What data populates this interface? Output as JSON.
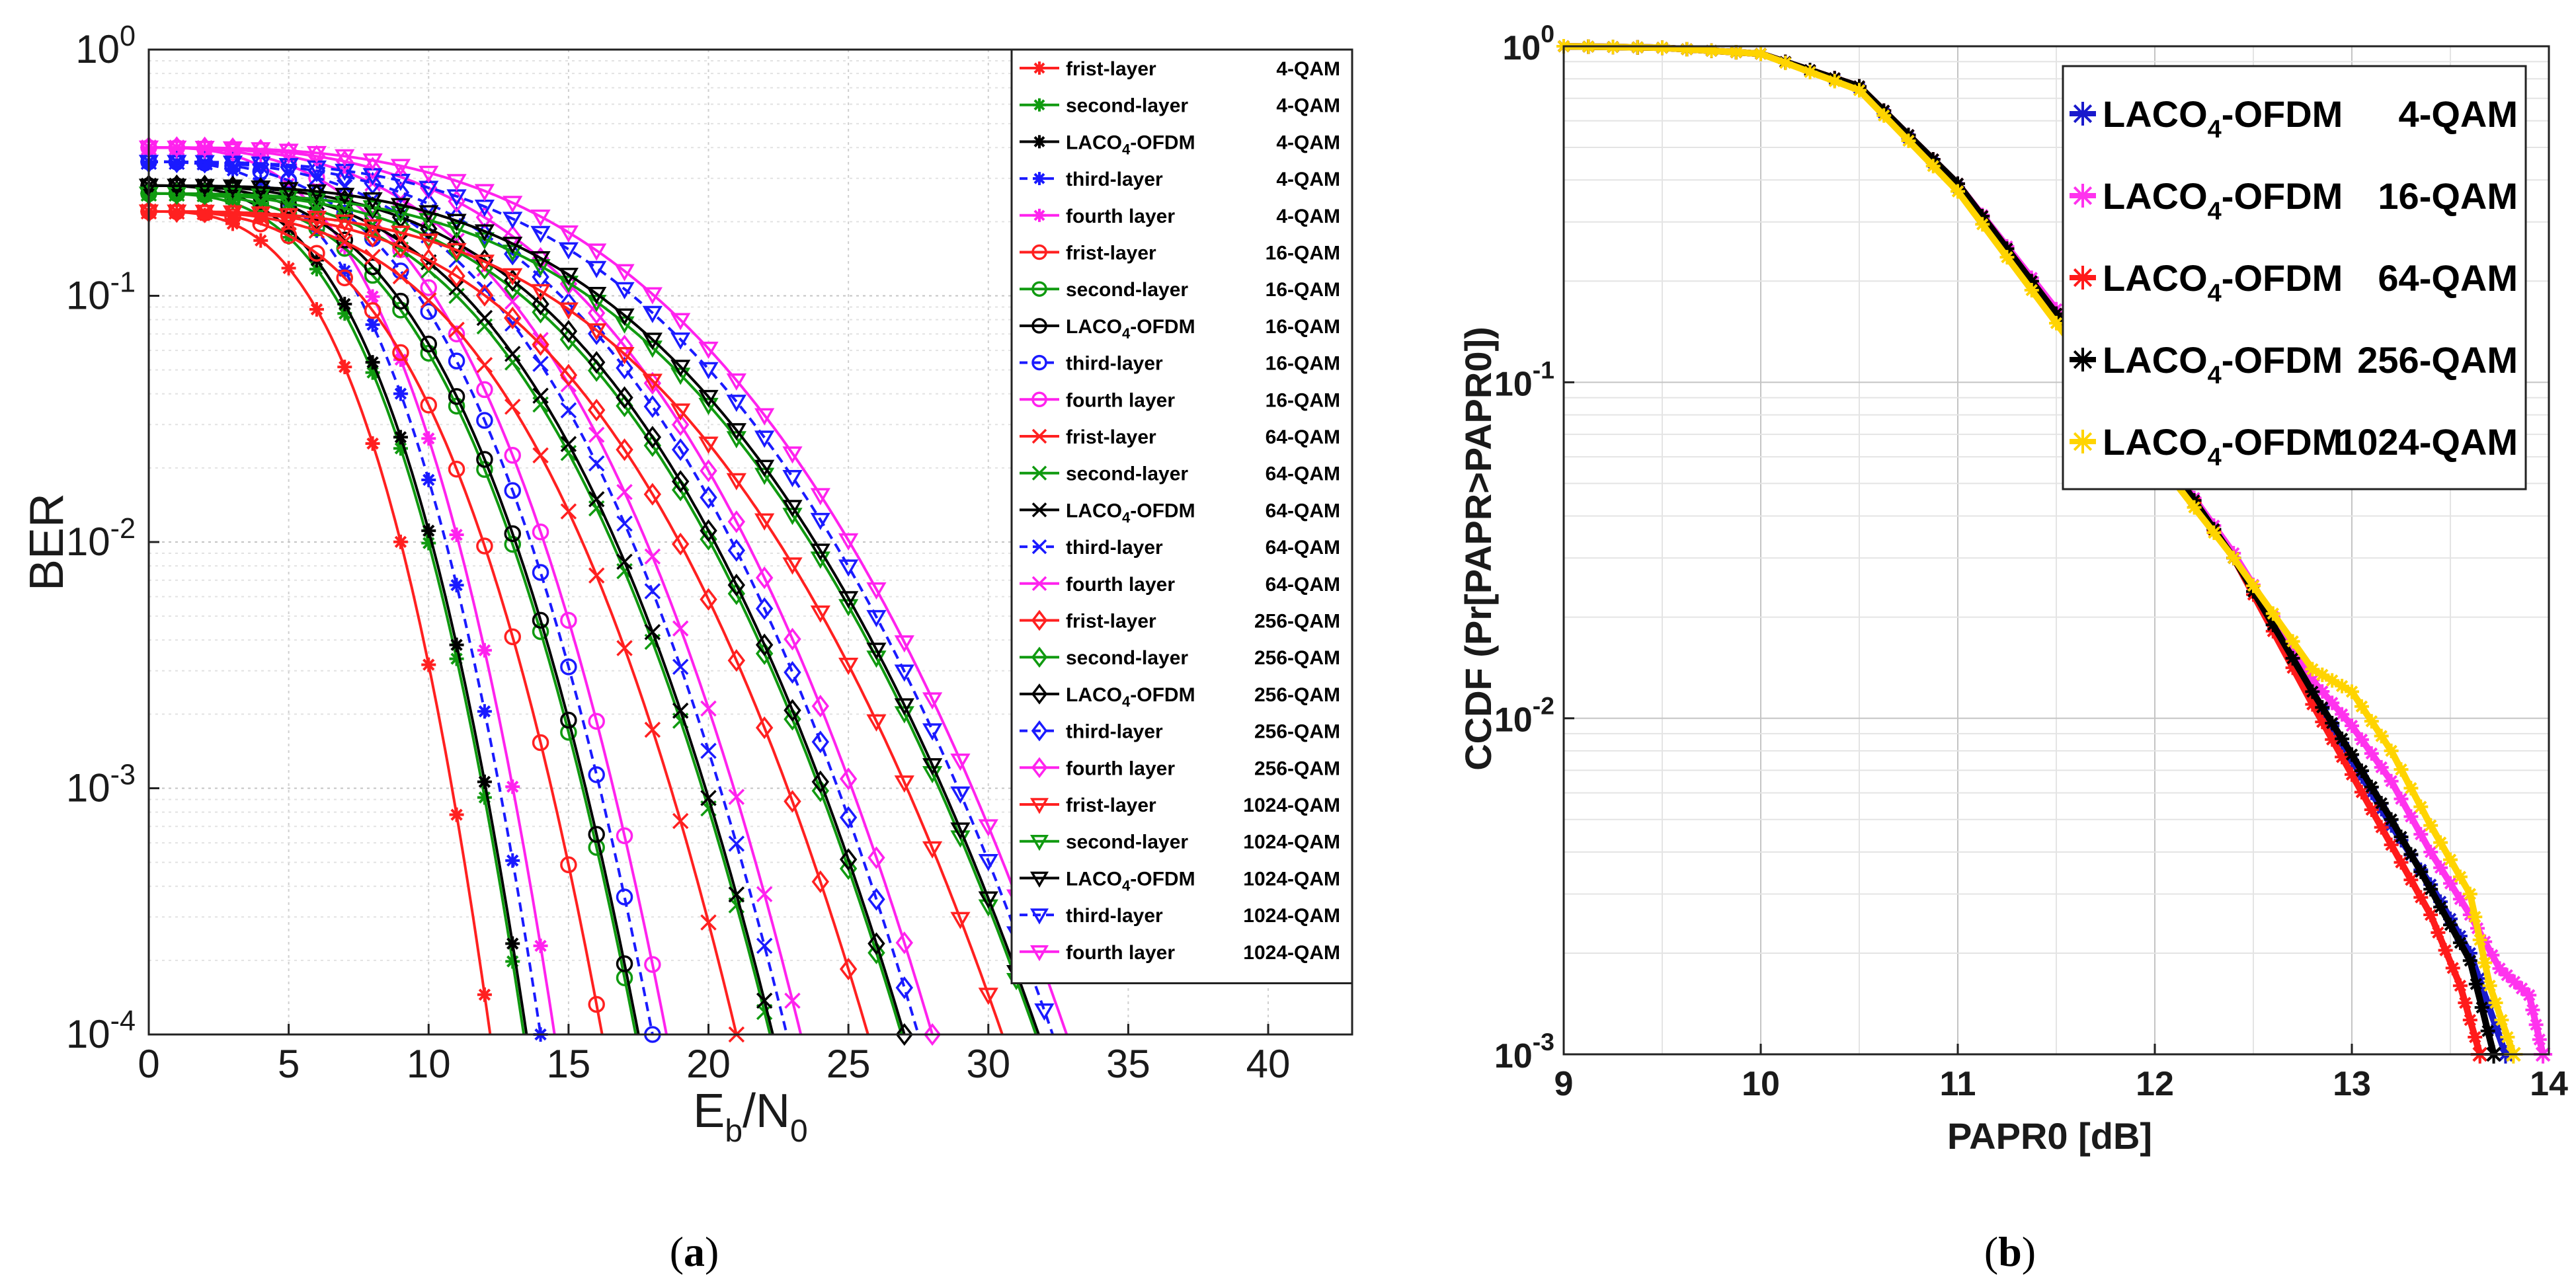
{
  "chart_data": [
    {
      "panel": "a",
      "type": "line",
      "caption": "a",
      "xlabel": "E_b/N_0",
      "xlabel_parts": {
        "main1": "E",
        "sub1": "b",
        "main2": "/N",
        "sub2": "0"
      },
      "ylabel": "BER",
      "xscale": "linear",
      "yscale": "log",
      "xlim": [
        0,
        43
      ],
      "ylim": [
        0.0001,
        1
      ],
      "xticks": [
        "0",
        "5",
        "10",
        "15",
        "20",
        "25",
        "30",
        "35",
        "40"
      ],
      "yticks": [
        {
          "base": "10",
          "exp": "0"
        },
        {
          "base": "10",
          "exp": "-1"
        },
        {
          "base": "10",
          "exp": "-2"
        },
        {
          "base": "10",
          "exp": "-3"
        },
        {
          "base": "10",
          "exp": "-4"
        }
      ],
      "grid": true,
      "legend_position": "top-right",
      "groups": [
        {
          "mod": "4-QAM",
          "marker": "star",
          "x0": 13.5
        },
        {
          "mod": "16-QAM",
          "marker": "circle",
          "x0": 17.5
        },
        {
          "mod": "64-QAM",
          "marker": "x",
          "x0": 22.3
        },
        {
          "mod": "256-QAM",
          "marker": "diamond",
          "x0": 27.0
        },
        {
          "mod": "1024-QAM",
          "marker": "triangle-down",
          "x0": 31.8
        }
      ],
      "layers": [
        {
          "name": "frist-layer",
          "color": "#ff2020",
          "dash": false,
          "y0": 0.22,
          "shift": -1.3
        },
        {
          "name": "second-layer",
          "color": "#109a10",
          "dash": false,
          "y0": 0.26,
          "shift": -0.1
        },
        {
          "name": "LACO4-OFDM",
          "name_main": "LACO",
          "name_sub": "4",
          "name_tail": "-OFDM",
          "color": "#000000",
          "dash": false,
          "y0": 0.28,
          "shift": 0.0
        },
        {
          "name": "third-layer",
          "color": "#1a1aff",
          "dash": true,
          "y0": 0.35,
          "shift": 0.5
        },
        {
          "name": "fourth layer",
          "color": "#ff22ee",
          "dash": false,
          "y0": 0.4,
          "shift": 1.0
        }
      ]
    },
    {
      "panel": "b",
      "type": "line",
      "caption": "b",
      "xlabel": "PAPR0 [dB]",
      "ylabel": "CCDF (Pr[PAPR>PAPR0])",
      "xscale": "linear",
      "yscale": "log",
      "xlim": [
        9,
        14
      ],
      "ylim": [
        0.001,
        1
      ],
      "xticks": [
        "9",
        "10",
        "11",
        "12",
        "13",
        "14"
      ],
      "yticks": [
        {
          "base": "10",
          "exp": "0"
        },
        {
          "base": "10",
          "exp": "-1"
        },
        {
          "base": "10",
          "exp": "-2"
        },
        {
          "base": "10",
          "exp": "-3"
        }
      ],
      "grid": true,
      "legend_position": "top-right",
      "series": [
        {
          "name": "LACO4-OFDM 4-QAM",
          "name_main": "LACO",
          "name_sub": "4",
          "name_tail": "-OFDM",
          "mod": "4-QAM",
          "color": "#1a1acc",
          "x": [
            9.0,
            9.5,
            10.0,
            10.5,
            11.0,
            11.5,
            12.0,
            12.4,
            12.8,
            13.0,
            13.2,
            13.4,
            13.6,
            13.78
          ],
          "y": [
            1.0,
            0.99,
            0.95,
            0.75,
            0.38,
            0.16,
            0.065,
            0.03,
            0.012,
            0.0075,
            0.0048,
            0.0032,
            0.002,
            0.001
          ]
        },
        {
          "name": "LACO4-OFDM 16-QAM",
          "name_main": "LACO",
          "name_sub": "4",
          "name_tail": "-OFDM",
          "mod": "16-QAM",
          "color": "#ff33ee",
          "x": [
            9.0,
            9.5,
            10.0,
            10.5,
            11.0,
            11.5,
            12.0,
            12.4,
            12.8,
            13.0,
            13.2,
            13.4,
            13.6,
            13.75,
            13.9,
            13.97
          ],
          "y": [
            1.0,
            0.99,
            0.95,
            0.76,
            0.39,
            0.165,
            0.066,
            0.031,
            0.013,
            0.0095,
            0.0065,
            0.004,
            0.0026,
            0.0018,
            0.0015,
            0.001
          ]
        },
        {
          "name": "LACO4-OFDM 64-QAM",
          "name_main": "LACO",
          "name_sub": "4",
          "name_tail": "-OFDM",
          "mod": "64-QAM",
          "color": "#ff1a1a",
          "x": [
            9.0,
            9.5,
            10.0,
            10.5,
            11.0,
            11.5,
            12.0,
            12.4,
            12.8,
            13.0,
            13.2,
            13.4,
            13.55,
            13.65
          ],
          "y": [
            1.0,
            0.99,
            0.95,
            0.76,
            0.39,
            0.16,
            0.064,
            0.03,
            0.011,
            0.0068,
            0.0042,
            0.0026,
            0.0016,
            0.001
          ]
        },
        {
          "name": "LACO4-OFDM 256-QAM",
          "name_main": "LACO",
          "name_sub": "4",
          "name_tail": "-OFDM",
          "mod": "256-QAM",
          "color": "#000000",
          "x": [
            9.0,
            9.5,
            10.0,
            10.5,
            11.0,
            11.5,
            12.0,
            12.4,
            12.8,
            13.0,
            13.2,
            13.4,
            13.6,
            13.72
          ],
          "y": [
            1.0,
            0.99,
            0.95,
            0.76,
            0.39,
            0.16,
            0.066,
            0.03,
            0.012,
            0.0078,
            0.005,
            0.0031,
            0.0019,
            0.001
          ]
        },
        {
          "name": "LACO4-OFDM 1024-QAM",
          "name_main": "LACO",
          "name_sub": "4",
          "name_tail": "-OFDM",
          "mod": "1024-QAM",
          "color": "#ffd400",
          "x": [
            9.0,
            9.5,
            10.0,
            10.5,
            11.0,
            11.5,
            12.0,
            12.4,
            12.8,
            13.0,
            13.2,
            13.4,
            13.6,
            13.7,
            13.82
          ],
          "y": [
            1.0,
            0.99,
            0.95,
            0.74,
            0.37,
            0.15,
            0.06,
            0.03,
            0.014,
            0.012,
            0.008,
            0.0048,
            0.003,
            0.0016,
            0.001
          ]
        }
      ]
    }
  ]
}
